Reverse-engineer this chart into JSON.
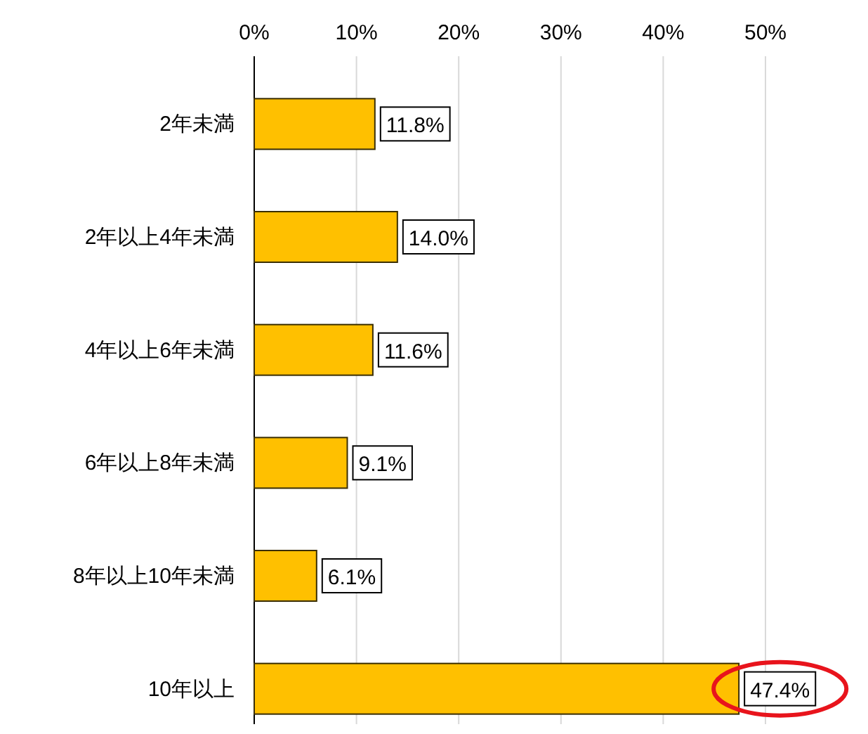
{
  "chart_data": {
    "type": "bar",
    "orientation": "horizontal",
    "categories": [
      "2年未満",
      "2年以上4年未満",
      "4年以上6年未満",
      "6年以上8年未満",
      "8年以上10年未満",
      "10年以上"
    ],
    "values": [
      11.8,
      14.0,
      11.6,
      9.1,
      6.1,
      47.4
    ],
    "color": "#ffc000",
    "value_labels": [
      "11.8%",
      "14.0%",
      "11.6%",
      "9.1%",
      "6.1%",
      "47.4%"
    ],
    "xlim": [
      0,
      50
    ],
    "xticks": [
      {
        "value": 0,
        "label": "0%"
      },
      {
        "value": 10,
        "label": "10%"
      },
      {
        "value": 20,
        "label": "20%"
      },
      {
        "value": 30,
        "label": "30%"
      },
      {
        "value": 40,
        "label": "40%"
      },
      {
        "value": 50,
        "label": "50%"
      }
    ],
    "grid": "x"
  }
}
